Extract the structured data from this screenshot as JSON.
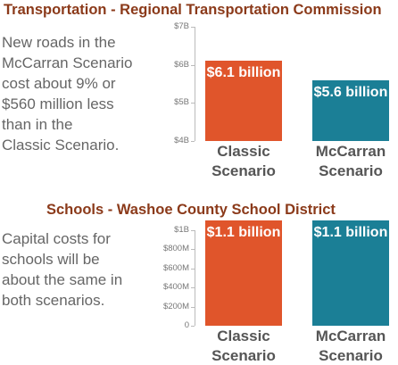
{
  "chart_data": [
    {
      "type": "bar",
      "title": "Transportation - Regional Transportation Commission",
      "description": [
        "New roads in the",
        "McCarran Scenario",
        "cost about 9% or",
        "$560 million less",
        "than in the",
        "Classic Scenario."
      ],
      "categories": [
        "Classic Scenario",
        "McCarran Scenario"
      ],
      "values": [
        6.1,
        5.6
      ],
      "value_labels": [
        "$6.1 billion",
        "$5.6 billion"
      ],
      "colors": [
        "#e0552b",
        "#1b7f96"
      ],
      "ylim": [
        4,
        7
      ],
      "yticks": [
        {
          "value": 4,
          "label": "$4B"
        },
        {
          "value": 5,
          "label": "$5B"
        },
        {
          "value": 6,
          "label": "$6B"
        },
        {
          "value": 7,
          "label": "$7B"
        }
      ]
    },
    {
      "type": "bar",
      "title": "Schools - Washoe County School District",
      "description": [
        "Capital costs for",
        "schools will be",
        "about the same in",
        "both scenarios."
      ],
      "categories": [
        "Classic Scenario",
        "McCarran Scenario"
      ],
      "values": [
        1.1,
        1.1
      ],
      "value_labels": [
        "$1.1 billion",
        "$1.1 billion"
      ],
      "colors": [
        "#e0552b",
        "#1b7f96"
      ],
      "ylim": [
        0,
        1
      ],
      "yticks": [
        0,
        {
          "value": 0.2,
          "label": "$200M"
        },
        {
          "value": 0.4,
          "label": "$400M"
        },
        {
          "value": 0.6,
          "label": "$600M"
        },
        {
          "value": 0.8,
          "label": "$800M"
        },
        {
          "value": 1,
          "label": "$1B"
        }
      ]
    }
  ]
}
